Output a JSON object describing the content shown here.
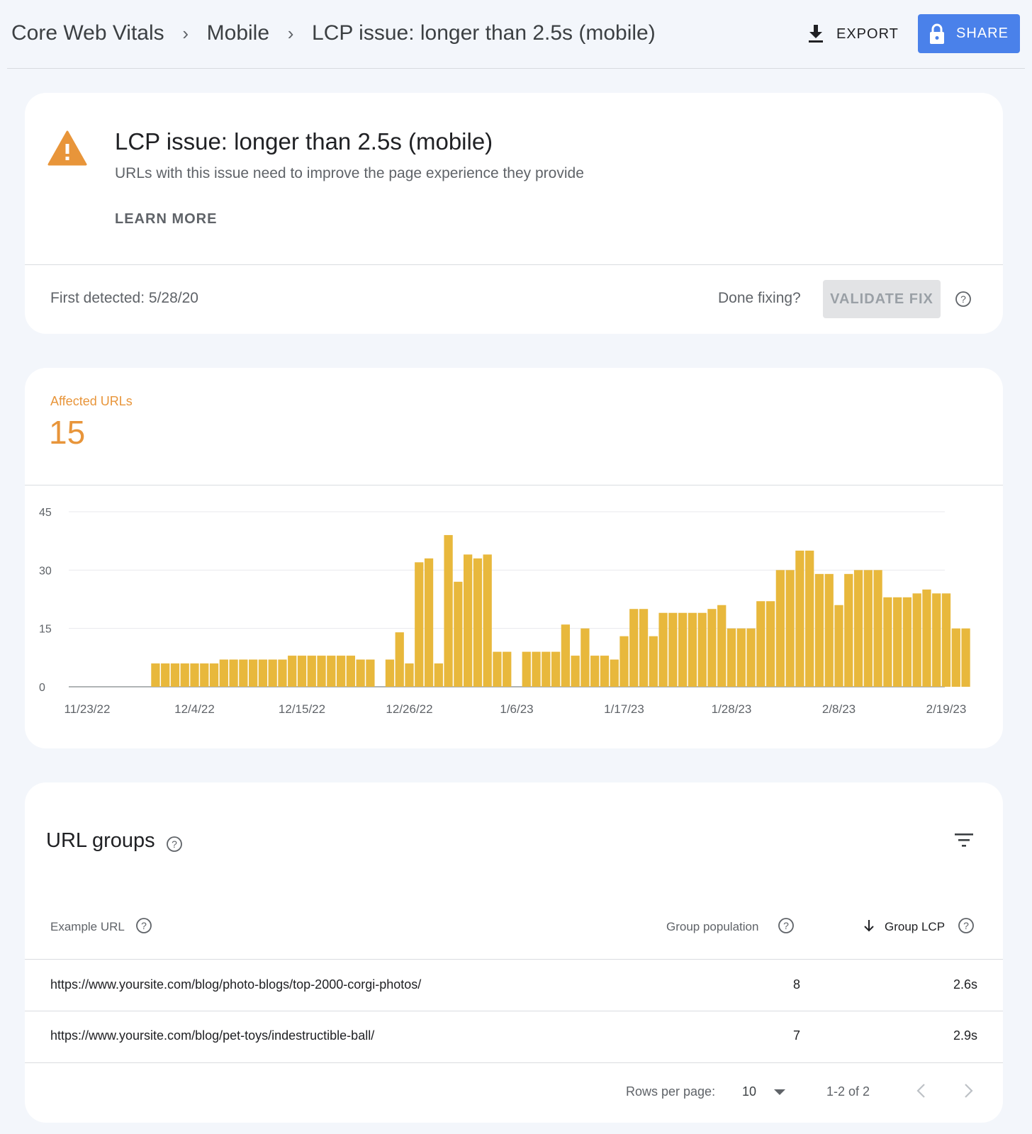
{
  "header": {
    "breadcrumbs": [
      "Core Web Vitals",
      "Mobile",
      "LCP issue: longer than 2.5s (mobile)"
    ],
    "export_label": "EXPORT",
    "share_label": "SHARE",
    "share_color": "#4a81ea"
  },
  "issue": {
    "title": "LCP issue: longer than 2.5s (mobile)",
    "description": "URLs with this issue need to improve the page experience they provide",
    "learn_more": "LEARN MORE",
    "first_detected": "First detected: 5/28/20",
    "done_fixing": "Done fixing?",
    "validate_label": "VALIDATE FIX",
    "icon": "warning-icon",
    "warning_color": "#e8953a"
  },
  "affected": {
    "label": "Affected URLs",
    "value": "15"
  },
  "chart_data": {
    "type": "bar",
    "ylim": [
      0,
      45
    ],
    "y_ticks": [
      0,
      15,
      30,
      45
    ],
    "x_tick_labels": [
      "11/23/22",
      "12/4/22",
      "12/15/22",
      "12/26/22",
      "1/6/23",
      "1/17/23",
      "1/28/23",
      "2/8/23",
      "2/19/23"
    ],
    "x_start": "11/23/22",
    "values": [
      null,
      null,
      null,
      null,
      null,
      null,
      null,
      6,
      6,
      6,
      6,
      6,
      6,
      6,
      7,
      7,
      7,
      7,
      7,
      7,
      7,
      8,
      8,
      8,
      8,
      8,
      8,
      8,
      7,
      7,
      null,
      7,
      14,
      6,
      32,
      33,
      6,
      39,
      27,
      34,
      33,
      34,
      9,
      9,
      null,
      9,
      9,
      9,
      9,
      16,
      8,
      15,
      8,
      8,
      7,
      13,
      20,
      20,
      13,
      19,
      19,
      19,
      19,
      19,
      20,
      21,
      15,
      15,
      15,
      22,
      22,
      30,
      30,
      35,
      35,
      29,
      29,
      21,
      29,
      30,
      30,
      30,
      23,
      23,
      23,
      24,
      25,
      24,
      24,
      15,
      15
    ],
    "bar_color": "#e8b83c",
    "grid": true
  },
  "groups": {
    "title": "URL groups",
    "columns": [
      "Example URL",
      "Group population",
      "Group LCP"
    ],
    "sort": "Group LCP",
    "rows": [
      {
        "url": "https://www.yoursite.com/blog/photo-blogs/top-2000-corgi-photos/",
        "population": "8",
        "lcp": "2.6s"
      },
      {
        "url": "https://www.yoursite.com/blog/pet-toys/indestructible-ball/",
        "population": "7",
        "lcp": "2.9s"
      }
    ],
    "rows_per_page_label": "Rows per page:",
    "rows_per_page_value": "10",
    "pagination": "1-2 of 2"
  }
}
